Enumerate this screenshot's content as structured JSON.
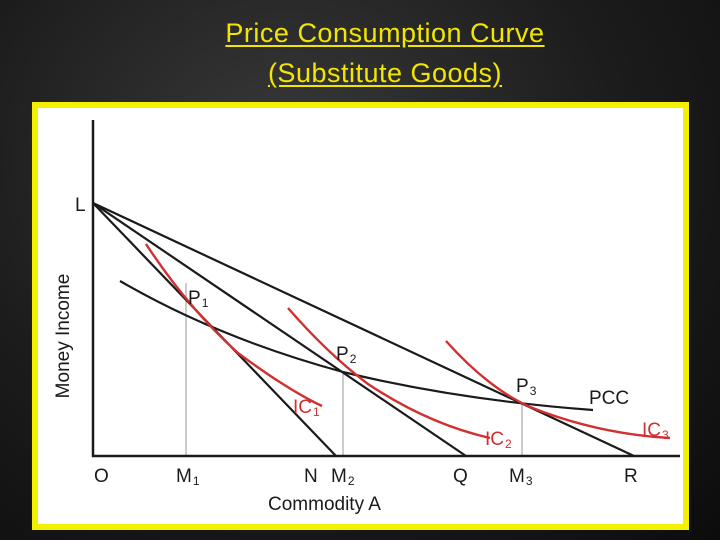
{
  "slide": {
    "title_line1": "Price Consumption Curve",
    "title_line2": "(Substitute Goods)",
    "title_color": "#f2e600",
    "frame_color": "#f4f000"
  },
  "diagram": {
    "x_axis_title": "Commodity A",
    "y_axis_title": "Money Income",
    "origin_label": "O",
    "intercept_y_label": "L",
    "x_axis_labels": [
      {
        "main": "M",
        "sub": "1"
      },
      {
        "main": "N",
        "sub": ""
      },
      {
        "main": "M",
        "sub": "2"
      },
      {
        "main": "Q",
        "sub": ""
      },
      {
        "main": "M",
        "sub": "3"
      },
      {
        "main": "R",
        "sub": ""
      }
    ],
    "equilibrium_points": [
      {
        "main": "P",
        "sub": "1"
      },
      {
        "main": "P",
        "sub": "2"
      },
      {
        "main": "P",
        "sub": "3"
      }
    ],
    "indifference_curves": [
      {
        "main": "IC",
        "sub": "1"
      },
      {
        "main": "IC",
        "sub": "2"
      },
      {
        "main": "IC",
        "sub": "3"
      }
    ],
    "pcc_label": "PCC",
    "budget_line_color": "#1a1a1a",
    "ic_color": "#d03030",
    "guide_color": "#999999"
  }
}
